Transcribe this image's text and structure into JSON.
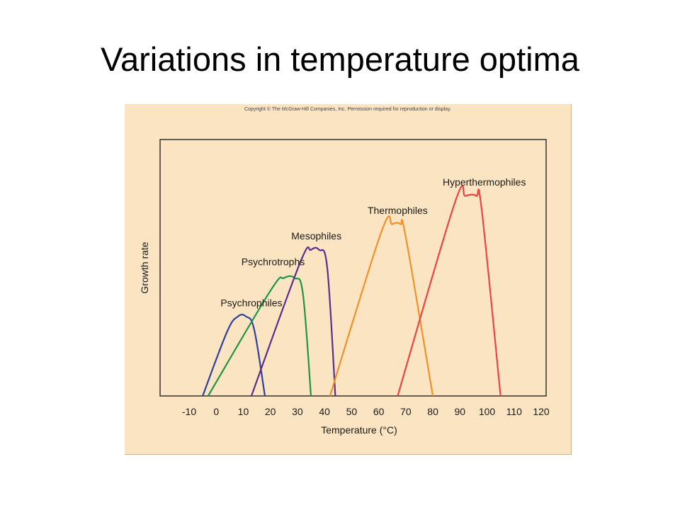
{
  "slide": {
    "title": "Variations in temperature optima"
  },
  "figure": {
    "copyright": "Copyright © The McGraw-Hill Companies, Inc. Permission required for reproduction or display."
  },
  "chart_data": {
    "type": "line",
    "title": "",
    "xlabel": "Temperature (°C)",
    "ylabel": "Growth rate",
    "xlim": [
      -15,
      120
    ],
    "ylim": [
      0,
      100
    ],
    "x_ticks": [
      -10,
      0,
      10,
      20,
      30,
      40,
      50,
      60,
      70,
      80,
      90,
      100,
      110,
      120
    ],
    "grid": false,
    "legend": "none",
    "series": [
      {
        "name": "Psychrophiles",
        "color": "#2e3f9e",
        "points": [
          [
            -5,
            0
          ],
          [
            4,
            25
          ],
          [
            8,
            31
          ],
          [
            11,
            31
          ],
          [
            14,
            26
          ],
          [
            18,
            0
          ]
        ],
        "label_at": [
          13,
          35
        ]
      },
      {
        "name": "Psychrotrophs",
        "color": "#1f9447",
        "points": [
          [
            -3,
            0
          ],
          [
            20,
            41
          ],
          [
            25,
            46
          ],
          [
            29,
            46
          ],
          [
            32,
            40
          ],
          [
            35,
            0
          ]
        ],
        "label_at": [
          21,
          51
        ]
      },
      {
        "name": "Mesophiles",
        "color": "#5b2e8c",
        "points": [
          [
            13,
            0
          ],
          [
            31,
            52
          ],
          [
            35,
            57
          ],
          [
            38,
            57
          ],
          [
            41,
            50
          ],
          [
            44,
            0
          ]
        ],
        "label_at": [
          37,
          61
        ]
      },
      {
        "name": "Thermophiles",
        "color": "#f0912a",
        "points": [
          [
            42,
            0
          ],
          [
            61,
            64
          ],
          [
            65,
            67
          ],
          [
            68,
            67
          ],
          [
            70,
            62
          ],
          [
            80,
            0
          ]
        ],
        "label_at": [
          67,
          71
        ]
      },
      {
        "name": "Hyperthermophiles",
        "color": "#ec4343",
        "points": [
          [
            67,
            0
          ],
          [
            88,
            75
          ],
          [
            92,
            78
          ],
          [
            96,
            78
          ],
          [
            98,
            73
          ],
          [
            105,
            0
          ]
        ],
        "label_at": [
          99,
          82
        ]
      }
    ]
  }
}
